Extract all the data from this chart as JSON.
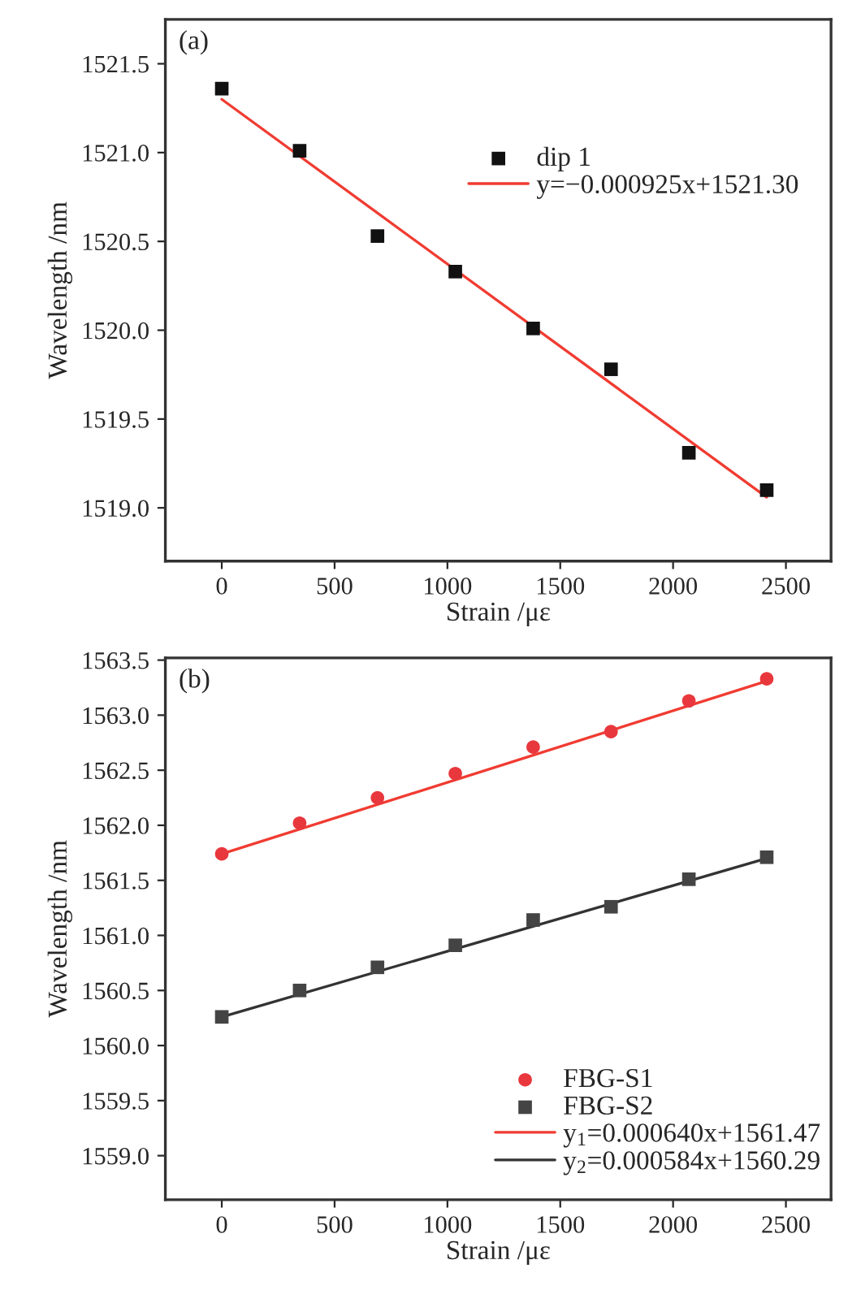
{
  "chart_data": [
    {
      "type": "scatter",
      "xlabel": "Strain /με",
      "ylabel": "Wavelength /nm",
      "annotations": [
        "(a)"
      ],
      "xlim": [
        -250,
        2700
      ],
      "ylim": [
        1518.7,
        1521.75
      ],
      "xticks": [
        0,
        500,
        1000,
        1500,
        2000,
        2500
      ],
      "yticks": [
        {
          "value": 1519,
          "label": "1519.0"
        },
        1519.5,
        {
          "value": 1520,
          "label": "1520.0"
        },
        1520.5,
        {
          "value": 1521,
          "label": "1521.0"
        },
        1521.5
      ],
      "legend": "top right",
      "grid": false,
      "series": [
        {
          "name": "dip 1",
          "marker": "square",
          "color": "#111111",
          "x": [
            0,
            345,
            690,
            1035,
            1380,
            1725,
            2070,
            2415
          ],
          "values": [
            1521.36,
            1521.01,
            1520.53,
            1520.33,
            1520.01,
            1519.78,
            1519.31,
            1519.1
          ]
        },
        {
          "name": "y=−0.000925x+1521.30",
          "type": "line",
          "line_style": "solid",
          "color": "#f03c32",
          "x": [
            0,
            2415
          ],
          "values": [
            1521.3,
            1519.06
          ]
        }
      ]
    },
    {
      "type": "scatter",
      "xlabel": "Strain /με",
      "ylabel": "Wavelength /nm",
      "annotations": [
        "(b)"
      ],
      "xlim": [
        -250,
        2700
      ],
      "ylim": [
        1558.6,
        1563.52
      ],
      "xticks": [
        0,
        500,
        1000,
        1500,
        2000,
        2500
      ],
      "yticks": [
        {
          "value": 1559,
          "label": "1559.0"
        },
        1559.5,
        {
          "value": 1560,
          "label": "1560.0"
        },
        1560.5,
        {
          "value": 1561,
          "label": "1561.0"
        },
        1561.5,
        {
          "value": 1562,
          "label": "1562.0"
        },
        1562.5,
        {
          "value": 1563,
          "label": "1563.0"
        },
        1563.5
      ],
      "legend": "bottom",
      "grid": false,
      "series": [
        {
          "name": "FBG-S1",
          "marker": "circle",
          "color": "#e8383d",
          "x": [
            0,
            345,
            690,
            1035,
            1380,
            1725,
            2070,
            2415
          ],
          "values": [
            1561.74,
            1562.02,
            1562.25,
            1562.47,
            1562.71,
            1562.85,
            1563.13,
            1563.33
          ]
        },
        {
          "name": "FBG-S2",
          "marker": "square",
          "color": "#444444",
          "x": [
            0,
            345,
            690,
            1035,
            1380,
            1725,
            2070,
            2415
          ],
          "values": [
            1560.26,
            1560.5,
            1560.71,
            1560.91,
            1561.14,
            1561.26,
            1561.51,
            1561.71
          ]
        },
        {
          "name": "y$_{1}$=0.000640x+1561.47",
          "type": "line",
          "line_style": "solid",
          "color": "#f03c32",
          "x": [
            0,
            2415
          ],
          "values": [
            1561.74,
            1563.31
          ]
        },
        {
          "name": "y$_{2}$=0.000584x+1560.29",
          "type": "line",
          "line_style": "solid",
          "color": "#333333",
          "x": [
            0,
            2415
          ],
          "values": [
            1560.26,
            1561.7
          ]
        }
      ]
    }
  ]
}
